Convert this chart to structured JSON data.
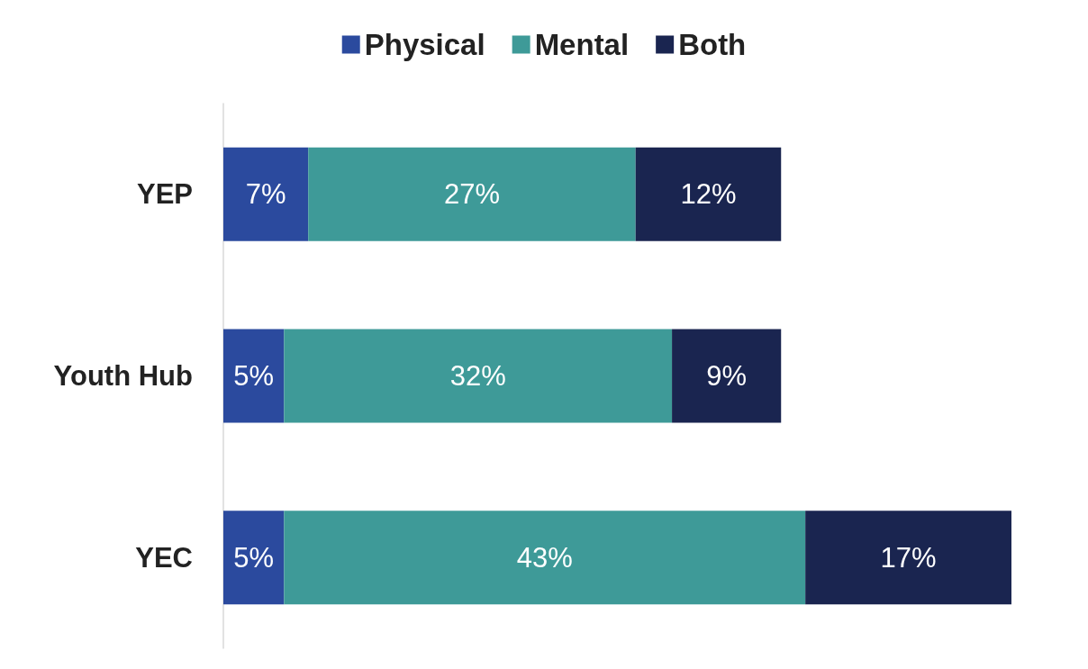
{
  "chart_data": {
    "type": "bar",
    "orientation": "horizontal",
    "stacked": true,
    "legend": "top",
    "categories": [
      "YEP",
      "Youth Hub",
      "YEC"
    ],
    "series": [
      {
        "name": "Physical",
        "color": "#2b4a9e",
        "values": [
          7,
          5,
          5
        ],
        "value_labels": [
          "7%",
          "5%",
          "5%"
        ]
      },
      {
        "name": "Mental",
        "color": "#3e9a98",
        "values": [
          27,
          32,
          43
        ],
        "value_labels": [
          "27%",
          "32%",
          "43%"
        ]
      },
      {
        "name": "Both",
        "color": "#1a2550",
        "values": [
          12,
          9,
          17
        ],
        "value_labels": [
          "12%",
          "9%",
          "17%"
        ]
      }
    ]
  }
}
